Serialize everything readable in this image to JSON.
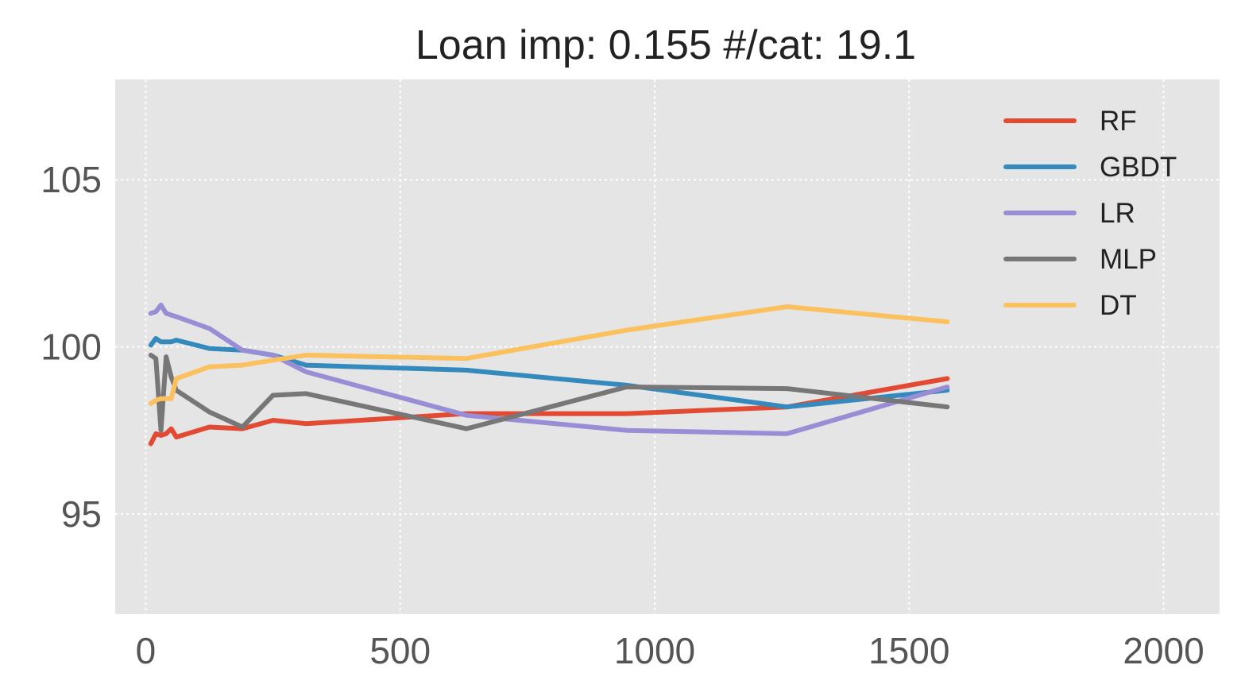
{
  "chart_data": {
    "type": "line",
    "title": "Loan imp: 0.155 #/cat: 19.1",
    "xlabel": "",
    "ylabel": "",
    "xlim": [
      -60,
      2110
    ],
    "ylim": [
      92,
      108
    ],
    "xticks": [
      0,
      500,
      1000,
      1500,
      2000
    ],
    "xtick_labels": [
      "0",
      "500",
      "1000",
      "1500",
      "2000"
    ],
    "yticks": [
      95,
      100,
      105
    ],
    "ytick_labels": [
      "95",
      "100",
      "105"
    ],
    "grid": true,
    "legend_position": "top-right",
    "series": [
      {
        "name": "RF",
        "color": "#E24A33",
        "x": [
          10,
          20,
          30,
          40,
          50,
          60,
          125,
          190,
          250,
          315,
          630,
          945,
          1260,
          1575
        ],
        "y": [
          97.1,
          97.4,
          97.35,
          97.4,
          97.55,
          97.3,
          97.6,
          97.55,
          97.8,
          97.7,
          98.0,
          98.0,
          98.2,
          99.05
        ]
      },
      {
        "name": "GBDT",
        "color": "#348ABD",
        "x": [
          10,
          20,
          30,
          40,
          50,
          60,
          125,
          190,
          250,
          315,
          630,
          945,
          1260,
          1575
        ],
        "y": [
          100.05,
          100.25,
          100.15,
          100.15,
          100.15,
          100.2,
          99.95,
          99.9,
          99.75,
          99.45,
          99.3,
          98.85,
          98.2,
          98.7
        ]
      },
      {
        "name": "LR",
        "color": "#988ED5",
        "x": [
          10,
          20,
          30,
          40,
          50,
          60,
          125,
          190,
          250,
          315,
          630,
          945,
          1260,
          1575
        ],
        "y": [
          101.0,
          101.05,
          101.25,
          101.0,
          100.95,
          100.9,
          100.55,
          99.9,
          99.75,
          99.25,
          97.95,
          97.5,
          97.4,
          98.8
        ]
      },
      {
        "name": "MLP",
        "color": "#777777",
        "x": [
          10,
          20,
          30,
          40,
          50,
          60,
          125,
          190,
          250,
          315,
          630,
          945,
          1260,
          1575
        ],
        "y": [
          99.75,
          99.65,
          97.5,
          99.7,
          99.1,
          98.7,
          98.05,
          97.6,
          98.55,
          98.6,
          97.55,
          98.8,
          98.75,
          98.2
        ]
      },
      {
        "name": "DT",
        "color": "#FBC15E",
        "x": [
          10,
          20,
          30,
          40,
          50,
          60,
          125,
          190,
          250,
          315,
          630,
          945,
          1260,
          1575
        ],
        "y": [
          98.3,
          98.4,
          98.45,
          98.45,
          98.45,
          99.05,
          99.4,
          99.45,
          99.6,
          99.75,
          99.65,
          100.5,
          101.2,
          100.75
        ]
      }
    ]
  }
}
